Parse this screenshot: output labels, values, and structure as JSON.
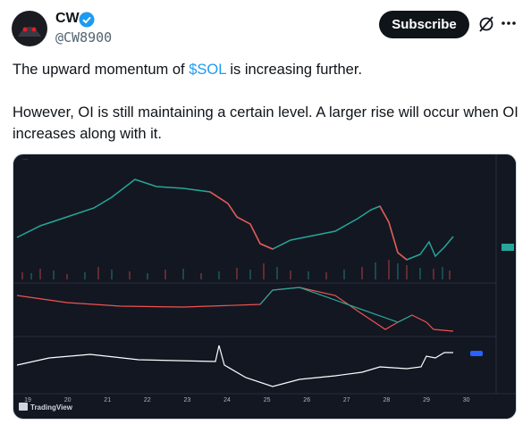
{
  "post": {
    "author": {
      "name": "CW",
      "handle": "@CW8900"
    },
    "subscribe": "Subscribe",
    "text": {
      "p1": {
        "before": "The upward momentum of",
        "cashtag": "$SOL",
        "after": "is increasing further."
      },
      "p2": "However, OI is still maintaining a certain level. A larger rise will occur when OI increases along with it."
    },
    "media": {
      "x_labels": [
        "19",
        "20",
        "21",
        "22",
        "23",
        "24",
        "25",
        "26",
        "27",
        "28",
        "29",
        "30"
      ],
      "brand": "TradingView"
    }
  }
}
